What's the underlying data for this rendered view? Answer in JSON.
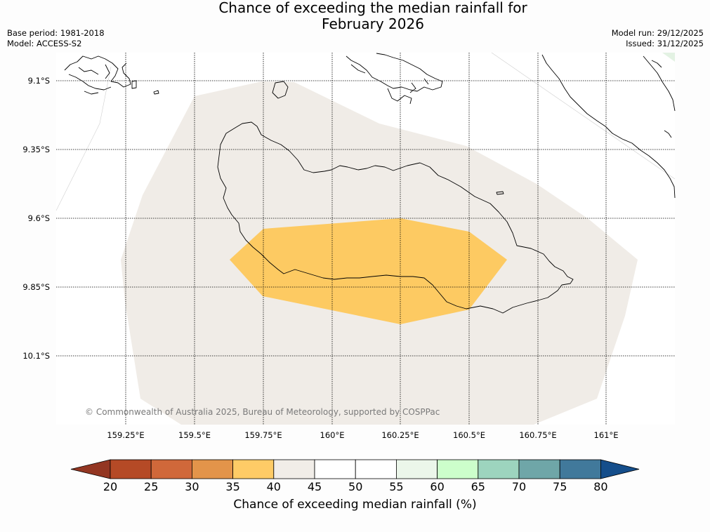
{
  "title": {
    "line1": "Chance of exceeding the median rainfall for",
    "line2": "February 2026"
  },
  "meta_left": {
    "base_period": "Base period: 1981-2018",
    "model": "Model: ACCESS-S2"
  },
  "meta_right": {
    "model_run": "Model run: 29/12/2025",
    "issued": "Issued: 31/12/2025"
  },
  "map": {
    "lat_labels": [
      "9.1°S",
      "9.35°S",
      "9.6°S",
      "9.85°S",
      "10.1°S"
    ],
    "lon_labels": [
      "159.25°E",
      "159.5°E",
      "159.75°E",
      "160°E",
      "160.25°E",
      "160.5°E",
      "160.75°E",
      "161°E"
    ],
    "copyright": "© Commonwealth of Australia 2025, Bureau of Meteorology, supported by COSPPac",
    "regions": [
      {
        "name": "40-45% probability zone",
        "color": "#f0ece7"
      },
      {
        "name": "35-40% probability zone",
        "color": "#fdca62"
      }
    ]
  },
  "colorbar": {
    "title": "Chance of exceeding median rainfall (%)",
    "ticks": [
      "20",
      "25",
      "30",
      "35",
      "40",
      "45",
      "50",
      "55",
      "60",
      "65",
      "70",
      "75",
      "80"
    ],
    "colors": [
      "#b54a26",
      "#d0683a",
      "#e3944a",
      "#fecb66",
      "#f1ede8",
      "#ffffff",
      "#ffffff",
      "#ebf6ea",
      "#ccfecb",
      "#9dd4be",
      "#6fa6a8",
      "#41799b"
    ],
    "under_color": "#933622",
    "over_color": "#154e8b"
  }
}
